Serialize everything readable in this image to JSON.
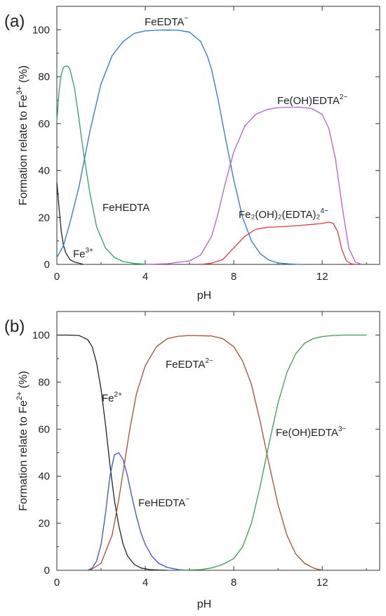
{
  "panels": [
    {
      "label": "(a)",
      "xlabel": "pH",
      "ylabel_main": "Formation relate to Fe",
      "ylabel_sup": "3+",
      "ylabel_tail": " (%)",
      "annotations": [
        {
          "id": "feedta",
          "base": "FeEDTA",
          "sup": "−"
        },
        {
          "id": "fe-oh-edta",
          "base": "Fe(OH)EDTA",
          "sup": "2−"
        },
        {
          "id": "fehedta",
          "base": "FeHEDTA",
          "sup": ""
        },
        {
          "id": "fe2-oh2-edta2",
          "base": "Fe₂(OH)₂(EDTA)₂",
          "sup": "4−"
        },
        {
          "id": "fe3",
          "base": "Fe",
          "sup": "3+"
        }
      ]
    },
    {
      "label": "(b)",
      "xlabel": "pH",
      "ylabel_main": "Formation relate to Fe",
      "ylabel_sup": "2+",
      "ylabel_tail": " (%)",
      "annotations": [
        {
          "id": "feedta2",
          "base": "FeEDTA",
          "sup": "2−"
        },
        {
          "id": "fe2",
          "base": "Fe",
          "sup": "2+"
        },
        {
          "id": "fe-oh-edta3",
          "base": "Fe(OH)EDTA",
          "sup": "3−"
        },
        {
          "id": "fehedta-minus",
          "base": "FeHEDTA",
          "sup": "−"
        }
      ]
    }
  ],
  "chart_data": [
    {
      "type": "line",
      "title": "",
      "panel_label": "(a)",
      "xlabel": "pH",
      "ylabel": "Formation relate to Fe3+ (%)",
      "xlim": [
        0,
        14.6
      ],
      "ylim": [
        0,
        110
      ],
      "xticks": [
        0,
        4,
        8,
        12
      ],
      "yticks": [
        0,
        20,
        40,
        60,
        80,
        100
      ],
      "grid": false,
      "legend": "none",
      "series": [
        {
          "name": "Fe3+",
          "color": "#222222",
          "x": [
            0,
            0.1,
            0.2,
            0.3,
            0.4,
            0.6,
            0.8,
            1.0,
            1.2
          ],
          "y": [
            35,
            24,
            14,
            8,
            5,
            2,
            1,
            0.5,
            0
          ]
        },
        {
          "name": "FeHEDTA",
          "color": "#2ca25f",
          "x": [
            0,
            0.1,
            0.2,
            0.3,
            0.4,
            0.5,
            0.6,
            0.8,
            1.0,
            1.2,
            1.5,
            1.8,
            2.2,
            2.6,
            3.0,
            3.5,
            4.0,
            4.5
          ],
          "y": [
            61,
            74,
            81,
            84,
            84.5,
            84.5,
            83,
            75,
            62,
            48,
            30,
            16,
            7,
            3,
            1.2,
            0.4,
            0.1,
            0
          ]
        },
        {
          "name": "FeEDTA-",
          "color": "#2a77c9",
          "x": [
            0,
            0.3,
            0.6,
            1.0,
            1.5,
            2.0,
            2.5,
            3.0,
            3.5,
            4.0,
            4.5,
            5.0,
            5.5,
            6.0,
            6.5,
            6.8,
            7.0,
            7.3,
            7.6,
            8.0,
            8.4,
            8.8,
            9.2,
            9.6,
            10.0,
            10.5,
            11.0
          ],
          "y": [
            3,
            8,
            18,
            33,
            57,
            77,
            89,
            95,
            98.5,
            99.5,
            99.8,
            99.9,
            99.8,
            99,
            95,
            89,
            83,
            70,
            55,
            36,
            20,
            10,
            4.5,
            1.8,
            0.6,
            0.2,
            0
          ]
        },
        {
          "name": "Fe(OH)EDTA2-",
          "color": "#b15fd6",
          "x": [
            4.0,
            5.0,
            6.0,
            6.5,
            7.0,
            7.3,
            7.6,
            8.0,
            8.5,
            9.0,
            9.5,
            10.0,
            10.5,
            11.0,
            11.5,
            12.0,
            12.3,
            12.6,
            12.9,
            13.2,
            13.5,
            13.8
          ],
          "y": [
            0,
            0.3,
            1.5,
            4,
            12,
            22,
            34,
            48,
            59,
            64,
            66,
            66.8,
            67,
            67,
            66.5,
            64,
            58,
            45,
            25,
            7,
            1,
            0
          ]
        },
        {
          "name": "Fe2(OH)2(EDTA)2 4-",
          "color": "#e03b3b",
          "x": [
            6.5,
            7.0,
            7.5,
            8.0,
            8.5,
            9.0,
            9.5,
            10.0,
            10.5,
            11.0,
            11.5,
            12.0,
            12.3,
            12.5,
            12.7,
            12.9,
            13.1,
            13.3,
            13.5
          ],
          "y": [
            0,
            0.5,
            2,
            7,
            12,
            15,
            15.8,
            16,
            16.3,
            16.6,
            17,
            17.5,
            18,
            17.5,
            14,
            6,
            1.5,
            0.3,
            0
          ]
        }
      ]
    },
    {
      "type": "line",
      "title": "",
      "panel_label": "(b)",
      "xlabel": "pH",
      "ylabel": "Formation relate to Fe2+ (%)",
      "xlim": [
        0,
        14.6
      ],
      "ylim": [
        0,
        110
      ],
      "xticks": [
        0,
        4,
        8,
        12
      ],
      "yticks": [
        0,
        20,
        40,
        60,
        80,
        100
      ],
      "grid": false,
      "legend": "none",
      "series": [
        {
          "name": "Fe2+",
          "color": "#222222",
          "x": [
            0,
            0.5,
            1.0,
            1.4,
            1.6,
            1.8,
            2.0,
            2.2,
            2.4,
            2.6,
            2.8,
            3.0,
            3.2,
            3.5,
            3.8,
            4.2,
            4.6,
            5.0
          ],
          "y": [
            100,
            100,
            99.8,
            98,
            95,
            88,
            77,
            62,
            45,
            30,
            19,
            11,
            6,
            2.5,
            1,
            0.3,
            0.1,
            0
          ]
        },
        {
          "name": "FeHEDTA-",
          "color": "#3a4fd8",
          "x": [
            1.4,
            1.6,
            1.8,
            2.0,
            2.2,
            2.4,
            2.6,
            2.8,
            3.0,
            3.2,
            3.4,
            3.6,
            3.8,
            4.0,
            4.3,
            4.6,
            5.0,
            5.5,
            6.0
          ],
          "y": [
            0,
            1,
            4,
            11,
            24,
            40,
            49,
            50,
            47,
            40,
            31,
            23,
            16,
            11,
            6,
            3,
            1.2,
            0.3,
            0
          ]
        },
        {
          "name": "FeEDTA2-",
          "color": "#a0522d",
          "x": [
            1.5,
            2.0,
            2.5,
            2.8,
            3.0,
            3.3,
            3.6,
            4.0,
            4.5,
            5.0,
            5.5,
            6.0,
            7.0,
            7.5,
            8.0,
            8.4,
            8.8,
            9.2,
            9.6,
            10.0,
            10.4,
            10.8,
            11.2,
            11.6,
            12.0
          ],
          "y": [
            0,
            3,
            15,
            30,
            42,
            60,
            75,
            87,
            95,
            98.5,
            99.5,
            99.8,
            99.6,
            98.5,
            95,
            89,
            79,
            63,
            45,
            28,
            15,
            7,
            3,
            1,
            0
          ]
        },
        {
          "name": "Fe(OH)EDTA3-",
          "color": "#3f9b4f",
          "x": [
            5.5,
            6.5,
            7.0,
            7.5,
            8.0,
            8.4,
            8.8,
            9.2,
            9.6,
            10.0,
            10.4,
            10.8,
            11.2,
            11.6,
            12.0,
            12.5,
            13.0,
            14.0
          ],
          "y": [
            0,
            0.3,
            1,
            2.5,
            5,
            10,
            20,
            36,
            54,
            71,
            84,
            92,
            96.5,
            98.5,
            99.4,
            99.8,
            100,
            100
          ]
        }
      ]
    }
  ]
}
